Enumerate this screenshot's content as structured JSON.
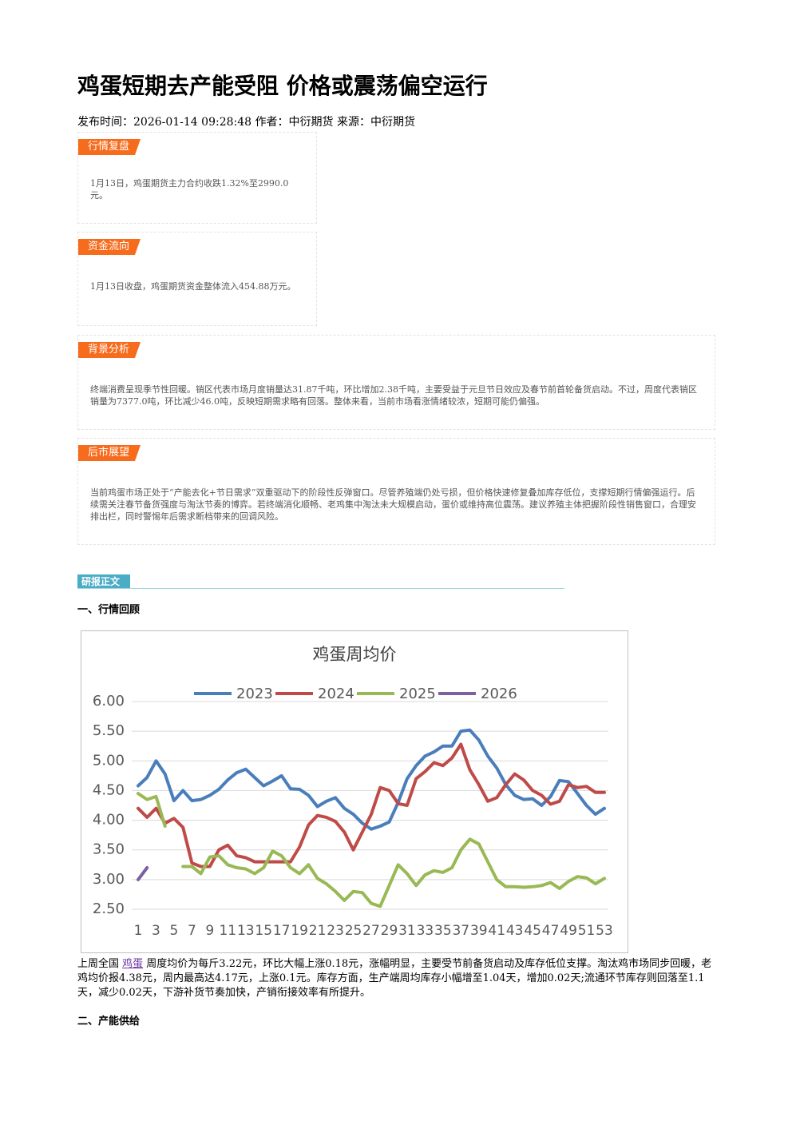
{
  "header": {
    "title": "鸡蛋短期去产能受阻 价格或震荡偏空运行",
    "meta": "发布时间：2026-01-14 09:28:48 作者：中衍期货 来源：中衍期货"
  },
  "sections": [
    {
      "tag": "行情复盘",
      "body": "1月13日，鸡蛋期货主力合约收跌1.32%至2990.0元。"
    },
    {
      "tag": "资金流向",
      "body": "1月13日收盘，鸡蛋期货资金整体流入454.88万元。"
    },
    {
      "tag": "背景分析",
      "body": "终端消费呈现季节性回暖。销区代表市场月度销量达31.87千吨，环比增加2.38千吨，主要受益于元旦节日效应及春节前首轮备货启动。不过，周度代表销区销量为7377.0吨，环比减少46.0吨，反映短期需求略有回落。整体来看，当前市场看涨情绪较浓，短期可能仍偏强。"
    },
    {
      "tag": "后市展望",
      "body": "当前鸡蛋市场正处于“产能去化+节日需求”双重驱动下的阶段性反弹窗口。尽管养殖端仍处亏损，但价格快速修复叠加库存低位，支撑短期行情偏强运行。后续需关注春节备货强度与淘汰节奏的博弈。若终端消化顺畅、老鸡集中淘汰未大规模启动，蛋价或维持高位震荡。建议养殖主体把握阶段性销售窗口，合理安排出栏，同时警惕年后需求断档带来的回调风险。"
    }
  ],
  "report_tag": "研报正文",
  "heading1": "一、行情回顾",
  "chart_data": {
    "type": "line",
    "title": "鸡蛋周均价",
    "legend": "top",
    "categories": [
      1,
      null,
      3,
      null,
      5,
      null,
      7,
      null,
      9,
      null,
      11,
      null,
      13,
      null,
      15,
      null,
      17,
      null,
      19,
      null,
      21,
      null,
      23,
      null,
      25,
      null,
      27,
      null,
      29,
      null,
      31,
      null,
      33,
      null,
      35,
      null,
      37,
      null,
      39,
      null,
      41,
      null,
      43,
      null,
      45,
      null,
      47,
      null,
      49,
      null,
      51,
      null,
      53
    ],
    "ylim": [
      2.5,
      6.0
    ],
    "yticks": [
      {
        "value": 2.5,
        "label": "2.50"
      },
      {
        "value": 3,
        "label": "3.00"
      },
      {
        "value": 3.5,
        "label": "3.50"
      },
      {
        "value": 4,
        "label": "4.00"
      },
      {
        "value": 4.5,
        "label": "4.50"
      },
      {
        "value": 5,
        "label": "5.00"
      },
      {
        "value": 5.5,
        "label": "5.50"
      },
      {
        "value": 6,
        "label": "6.00"
      }
    ],
    "grid": true,
    "series": [
      {
        "name": "2023",
        "color": "#4a7ebb",
        "values": [
          4.58,
          4.72,
          5.0,
          4.78,
          4.33,
          4.5,
          4.33,
          4.35,
          4.42,
          4.52,
          4.68,
          4.8,
          4.86,
          4.72,
          4.58,
          4.66,
          4.75,
          4.53,
          4.52,
          4.42,
          4.23,
          4.32,
          4.38,
          4.2,
          4.1,
          3.95,
          3.85,
          3.9,
          3.97,
          4.3,
          4.7,
          4.92,
          5.08,
          5.15,
          5.25,
          5.25,
          5.5,
          5.52,
          5.35,
          5.08,
          4.88,
          4.6,
          4.42,
          4.35,
          4.36,
          4.25,
          4.4,
          4.67,
          4.65,
          4.45,
          4.25,
          4.1,
          4.2
        ]
      },
      {
        "name": "2024",
        "color": "#be4b48",
        "values": [
          4.2,
          4.05,
          4.2,
          3.95,
          4.03,
          3.88,
          3.28,
          3.22,
          3.22,
          3.5,
          3.58,
          3.4,
          3.37,
          3.3,
          3.3,
          3.3,
          3.3,
          3.3,
          3.55,
          3.92,
          4.08,
          4.05,
          3.98,
          3.8,
          3.5,
          3.8,
          4.1,
          4.55,
          4.5,
          4.28,
          4.25,
          4.7,
          4.82,
          4.97,
          4.92,
          5.05,
          5.28,
          4.85,
          4.6,
          4.32,
          4.38,
          4.6,
          4.78,
          4.68,
          4.5,
          4.42,
          4.27,
          4.32,
          4.6,
          4.55,
          4.57,
          4.47,
          4.47
        ]
      },
      {
        "name": "2025",
        "color": "#98b954",
        "values": [
          4.45,
          4.35,
          4.4,
          3.9,
          null,
          3.22,
          3.22,
          3.1,
          3.38,
          3.4,
          3.25,
          3.2,
          3.18,
          3.1,
          3.2,
          3.48,
          3.4,
          3.2,
          3.1,
          3.25,
          3.02,
          2.93,
          2.8,
          2.65,
          2.8,
          2.78,
          2.6,
          2.55,
          2.9,
          3.25,
          3.1,
          2.9,
          3.08,
          3.15,
          3.12,
          3.2,
          3.5,
          3.68,
          3.6,
          3.3,
          3.0,
          2.88,
          2.88,
          2.87,
          2.88,
          2.9,
          2.95,
          2.85,
          2.97,
          3.05,
          3.03,
          2.93,
          3.02
        ]
      },
      {
        "name": "2026",
        "color": "#7d60a0",
        "values": [
          3.0,
          3.2,
          null,
          null,
          null,
          null,
          null,
          null,
          null,
          null,
          null,
          null,
          null,
          null,
          null,
          null,
          null,
          null,
          null,
          null,
          null,
          null,
          null,
          null,
          null,
          null,
          null,
          null,
          null,
          null,
          null,
          null,
          null,
          null,
          null,
          null,
          null,
          null,
          null,
          null,
          null,
          null,
          null,
          null,
          null,
          null,
          null,
          null,
          null,
          null,
          null,
          null,
          null
        ]
      }
    ]
  },
  "paragraph": {
    "before": "上周全国 ",
    "link": "鸡蛋",
    "after": " 周度均价为每斤3.22元，环比大幅上涨0.18元，涨幅明显，主要受节前备货启动及库存低位支撑。淘汰鸡市场同步回暖，老鸡均价报4.38元，周内最高达4.17元，上涨0.1元。库存方面，生产端周均库存小幅增至1.04天，增加0.02天;流通环节库存则回落至1.1天，减少0.02天，下游补货节奏加快，产销衔接效率有所提升。"
  },
  "heading2": "二、产能供给"
}
